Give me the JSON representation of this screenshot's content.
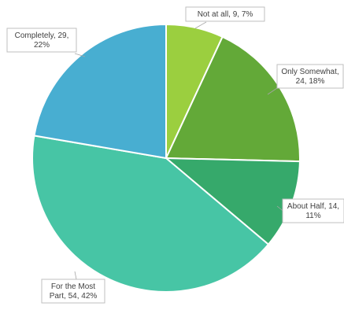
{
  "chart_data": {
    "type": "pie",
    "title": "",
    "legend": "none",
    "slices": [
      {
        "name": "Not at all",
        "value": 9,
        "percent": "7%",
        "color": "#9bcf3f",
        "label_lines": [
          "Not at all, 9, 7%"
        ]
      },
      {
        "name": "Only Somewhat",
        "value": 24,
        "percent": "18%",
        "color": "#63a938",
        "label_lines": [
          "Only Somewhat,",
          "24, 18%"
        ]
      },
      {
        "name": "About Half",
        "value": 14,
        "percent": "11%",
        "color": "#36a96b",
        "label_lines": [
          "About Half, 14,",
          "11%"
        ]
      },
      {
        "name": "For the Most Part",
        "value": 54,
        "percent": "42%",
        "color": "#47c5a5",
        "label_lines": [
          "For the Most",
          "Part, 54, 42%"
        ]
      },
      {
        "name": "Completely",
        "value": 29,
        "percent": "22%",
        "color": "#48aed1",
        "label_lines": [
          "Completely, 29,",
          "22%"
        ]
      }
    ]
  }
}
